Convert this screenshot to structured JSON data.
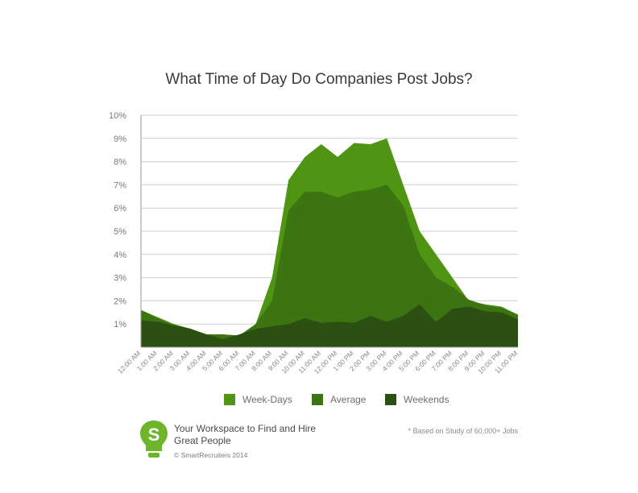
{
  "chart_data": {
    "type": "area",
    "title": "What Time of Day Do Companies Post Jobs?",
    "xlabel": "",
    "ylabel": "",
    "x": [
      "12:00 AM",
      "1:00 AM",
      "2:00 AM",
      "3:00 AM",
      "4:00 AM",
      "5:00 AM",
      "6:00 AM",
      "7:00 AM",
      "8:00 AM",
      "9:00 AM",
      "10:00 AM",
      "11:00 AM",
      "12:00 PM",
      "1:00 PM",
      "2:00 PM",
      "3:00 PM",
      "4:00 PM",
      "5:00 PM",
      "6:00 PM",
      "7:00 PM",
      "8:00 PM",
      "9:00 PM",
      "10:00 PM",
      "11:00 PM"
    ],
    "series": [
      {
        "name": "Week-Days",
        "color": "#4f9412",
        "values": [
          1.6,
          1.3,
          1.0,
          0.8,
          0.55,
          0.55,
          0.5,
          1.0,
          3.0,
          7.2,
          8.2,
          8.75,
          8.2,
          8.8,
          8.75,
          9.0,
          7.0,
          5.0,
          4.0,
          3.0,
          2.0,
          1.85,
          1.75,
          1.4
        ]
      },
      {
        "name": "Average",
        "color": "#3c7412",
        "values": [
          1.6,
          1.25,
          0.95,
          0.8,
          0.55,
          0.55,
          0.5,
          1.0,
          2.0,
          5.9,
          6.7,
          6.7,
          6.45,
          6.7,
          6.8,
          7.0,
          6.1,
          4.0,
          3.0,
          2.6,
          2.05,
          1.8,
          1.7,
          1.4
        ]
      },
      {
        "name": "Weekends",
        "color": "#2c5012",
        "values": [
          1.15,
          1.1,
          0.95,
          0.8,
          0.55,
          0.35,
          0.55,
          0.8,
          0.9,
          1.0,
          1.25,
          1.05,
          1.1,
          1.05,
          1.35,
          1.1,
          1.35,
          1.85,
          1.1,
          1.65,
          1.75,
          1.55,
          1.5,
          1.2
        ]
      }
    ],
    "yticks": [
      "1%",
      "2%",
      "3%",
      "4%",
      "5%",
      "6%",
      "7%",
      "8%",
      "9%",
      "10%"
    ],
    "ylim": [
      0,
      10
    ],
    "grid": true,
    "legend_position": "bottom"
  },
  "branding": {
    "logo_letter": "S",
    "logo_color": "#6fb52c",
    "tagline": "Your Workspace to Find and Hire Great People",
    "copyright": "© SmartRecruiters 2014"
  },
  "footnote": "* Based on Study of 60,000+ Jobs"
}
